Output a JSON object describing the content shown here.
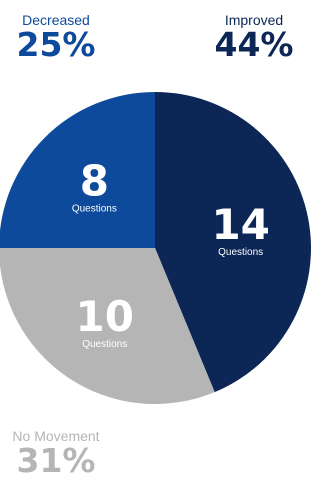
{
  "callouts": {
    "decreased": {
      "label": "Decreased",
      "percent": "25%"
    },
    "improved": {
      "label": "Improved",
      "percent": "44%"
    },
    "no_movement": {
      "label": "No Movement",
      "percent": "31%"
    }
  },
  "chart_data": {
    "type": "pie",
    "title": "",
    "slices": [
      {
        "name": "Improved",
        "value": 14,
        "unit_label": "Questions",
        "color": "#0c2656"
      },
      {
        "name": "No Movement",
        "value": 10,
        "unit_label": "Questions",
        "color": "#b5b5b5"
      },
      {
        "name": "Decreased",
        "value": 8,
        "unit_label": "Questions",
        "color": "#0d4a9b"
      }
    ],
    "start_angle_deg": 0,
    "direction": "clockwise"
  }
}
